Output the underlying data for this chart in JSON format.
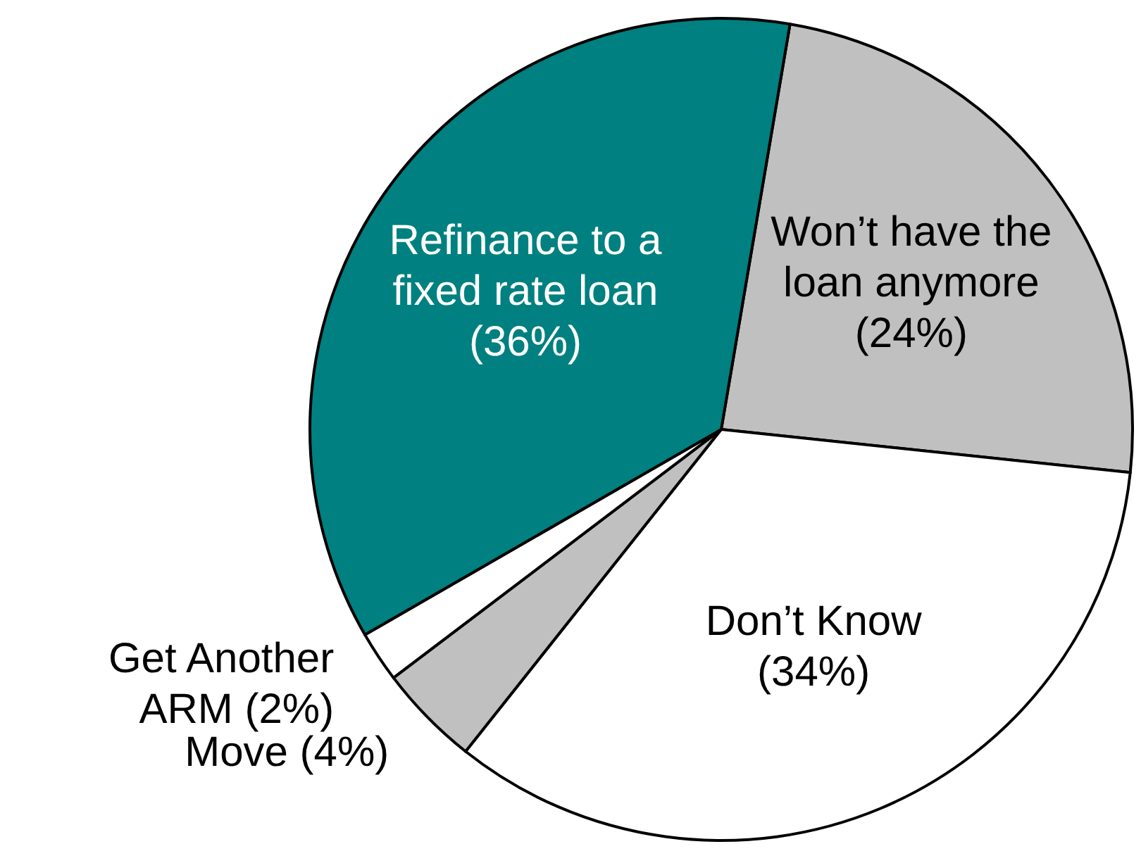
{
  "chart_data": {
    "type": "pie",
    "categories": [
      "Won’t have the loan anymore",
      "Don’t Know",
      "Move",
      "Get Another ARM",
      "Refinance to a fixed rate loan"
    ],
    "values": [
      24,
      34,
      4,
      2,
      36
    ],
    "value_labels": [
      "(24%)",
      "(34%)",
      "(4%)",
      "(2%)",
      "(36%)"
    ],
    "colors": [
      "#c0c0c0",
      "#ffffff",
      "#c0c0c0",
      "#ffffff",
      "#008080"
    ]
  }
}
